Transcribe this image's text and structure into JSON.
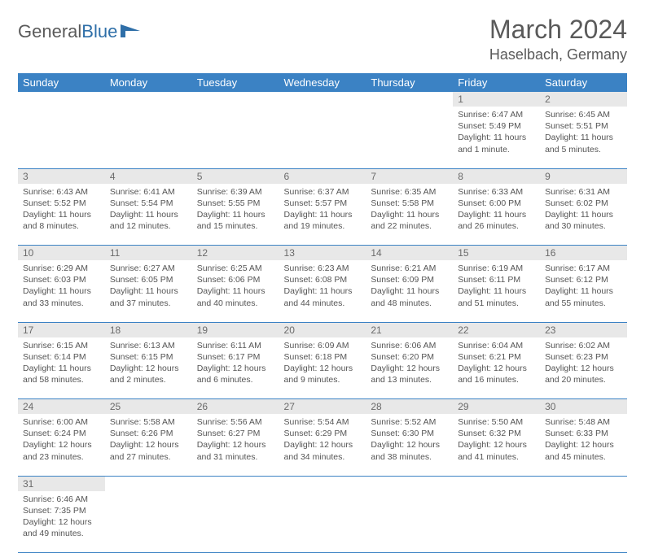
{
  "logo": {
    "text1": "General",
    "text2": "Blue"
  },
  "title": "March 2024",
  "location": "Haselbach, Germany",
  "colors": {
    "header_bg": "#3b82c4",
    "header_fg": "#ffffff",
    "daynum_bg": "#e8e8e8",
    "daynum_fg": "#6a6a6a",
    "text": "#555555",
    "rule": "#3b82c4"
  },
  "weekdays": [
    "Sunday",
    "Monday",
    "Tuesday",
    "Wednesday",
    "Thursday",
    "Friday",
    "Saturday"
  ],
  "weeks": [
    [
      null,
      null,
      null,
      null,
      null,
      {
        "n": "1",
        "sr": "6:47 AM",
        "ss": "5:49 PM",
        "dl": "11 hours and 1 minute."
      },
      {
        "n": "2",
        "sr": "6:45 AM",
        "ss": "5:51 PM",
        "dl": "11 hours and 5 minutes."
      }
    ],
    [
      {
        "n": "3",
        "sr": "6:43 AM",
        "ss": "5:52 PM",
        "dl": "11 hours and 8 minutes."
      },
      {
        "n": "4",
        "sr": "6:41 AM",
        "ss": "5:54 PM",
        "dl": "11 hours and 12 minutes."
      },
      {
        "n": "5",
        "sr": "6:39 AM",
        "ss": "5:55 PM",
        "dl": "11 hours and 15 minutes."
      },
      {
        "n": "6",
        "sr": "6:37 AM",
        "ss": "5:57 PM",
        "dl": "11 hours and 19 minutes."
      },
      {
        "n": "7",
        "sr": "6:35 AM",
        "ss": "5:58 PM",
        "dl": "11 hours and 22 minutes."
      },
      {
        "n": "8",
        "sr": "6:33 AM",
        "ss": "6:00 PM",
        "dl": "11 hours and 26 minutes."
      },
      {
        "n": "9",
        "sr": "6:31 AM",
        "ss": "6:02 PM",
        "dl": "11 hours and 30 minutes."
      }
    ],
    [
      {
        "n": "10",
        "sr": "6:29 AM",
        "ss": "6:03 PM",
        "dl": "11 hours and 33 minutes."
      },
      {
        "n": "11",
        "sr": "6:27 AM",
        "ss": "6:05 PM",
        "dl": "11 hours and 37 minutes."
      },
      {
        "n": "12",
        "sr": "6:25 AM",
        "ss": "6:06 PM",
        "dl": "11 hours and 40 minutes."
      },
      {
        "n": "13",
        "sr": "6:23 AM",
        "ss": "6:08 PM",
        "dl": "11 hours and 44 minutes."
      },
      {
        "n": "14",
        "sr": "6:21 AM",
        "ss": "6:09 PM",
        "dl": "11 hours and 48 minutes."
      },
      {
        "n": "15",
        "sr": "6:19 AM",
        "ss": "6:11 PM",
        "dl": "11 hours and 51 minutes."
      },
      {
        "n": "16",
        "sr": "6:17 AM",
        "ss": "6:12 PM",
        "dl": "11 hours and 55 minutes."
      }
    ],
    [
      {
        "n": "17",
        "sr": "6:15 AM",
        "ss": "6:14 PM",
        "dl": "11 hours and 58 minutes."
      },
      {
        "n": "18",
        "sr": "6:13 AM",
        "ss": "6:15 PM",
        "dl": "12 hours and 2 minutes."
      },
      {
        "n": "19",
        "sr": "6:11 AM",
        "ss": "6:17 PM",
        "dl": "12 hours and 6 minutes."
      },
      {
        "n": "20",
        "sr": "6:09 AM",
        "ss": "6:18 PM",
        "dl": "12 hours and 9 minutes."
      },
      {
        "n": "21",
        "sr": "6:06 AM",
        "ss": "6:20 PM",
        "dl": "12 hours and 13 minutes."
      },
      {
        "n": "22",
        "sr": "6:04 AM",
        "ss": "6:21 PM",
        "dl": "12 hours and 16 minutes."
      },
      {
        "n": "23",
        "sr": "6:02 AM",
        "ss": "6:23 PM",
        "dl": "12 hours and 20 minutes."
      }
    ],
    [
      {
        "n": "24",
        "sr": "6:00 AM",
        "ss": "6:24 PM",
        "dl": "12 hours and 23 minutes."
      },
      {
        "n": "25",
        "sr": "5:58 AM",
        "ss": "6:26 PM",
        "dl": "12 hours and 27 minutes."
      },
      {
        "n": "26",
        "sr": "5:56 AM",
        "ss": "6:27 PM",
        "dl": "12 hours and 31 minutes."
      },
      {
        "n": "27",
        "sr": "5:54 AM",
        "ss": "6:29 PM",
        "dl": "12 hours and 34 minutes."
      },
      {
        "n": "28",
        "sr": "5:52 AM",
        "ss": "6:30 PM",
        "dl": "12 hours and 38 minutes."
      },
      {
        "n": "29",
        "sr": "5:50 AM",
        "ss": "6:32 PM",
        "dl": "12 hours and 41 minutes."
      },
      {
        "n": "30",
        "sr": "5:48 AM",
        "ss": "6:33 PM",
        "dl": "12 hours and 45 minutes."
      }
    ],
    [
      {
        "n": "31",
        "sr": "6:46 AM",
        "ss": "7:35 PM",
        "dl": "12 hours and 49 minutes."
      },
      null,
      null,
      null,
      null,
      null,
      null
    ]
  ],
  "labels": {
    "sunrise": "Sunrise:",
    "sunset": "Sunset:",
    "daylight": "Daylight:"
  }
}
